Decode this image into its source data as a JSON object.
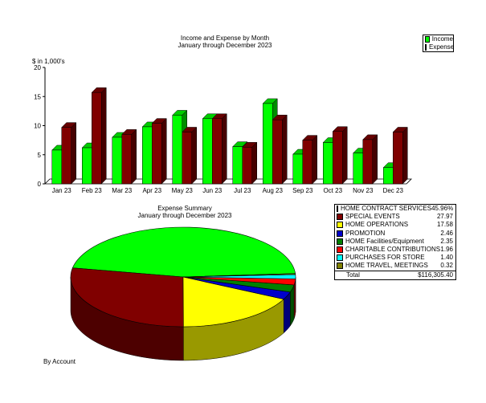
{
  "bar_chart": {
    "title": "Income and Expense by Month",
    "subtitle": "January through December 2023",
    "y_unit": "$ in 1,000's",
    "legend": [
      {
        "name": "Income",
        "color": "#00ff00"
      },
      {
        "name": "Expense",
        "color": "#800000"
      }
    ]
  },
  "pie_chart": {
    "title": "Expense Summary",
    "subtitle": "January through December 2023",
    "total_label": "Total",
    "total_value": "$116,305.40",
    "footer": "By Account"
  },
  "chart_data": [
    {
      "type": "bar",
      "title": "Income and Expense by Month",
      "subtitle": "January through December 2023",
      "ylabel": "$ in 1,000's",
      "xlabel": "",
      "ylim": [
        0,
        20
      ],
      "yticks": [
        0,
        5,
        10,
        15,
        20
      ],
      "grid": false,
      "legend_position": "top-right",
      "categories": [
        "Jan 23",
        "Feb 23",
        "Mar 23",
        "Apr 23",
        "May 23",
        "Jun 23",
        "Jul 23",
        "Aug 23",
        "Sep 23",
        "Oct 23",
        "Nov 23",
        "Dec 23"
      ],
      "series": [
        {
          "name": "Income",
          "color": "#00ff00",
          "values": [
            5.8,
            6.2,
            8.0,
            9.8,
            11.8,
            11.2,
            6.4,
            13.8,
            5.1,
            7.1,
            5.3,
            2.8
          ]
        },
        {
          "name": "Expense",
          "color": "#800000",
          "values": [
            9.7,
            15.7,
            8.5,
            10.4,
            8.9,
            11.2,
            6.3,
            11.0,
            7.5,
            9.0,
            7.6,
            8.9
          ]
        }
      ]
    },
    {
      "type": "pie",
      "title": "Expense Summary",
      "subtitle": "January through December 2023",
      "legend_position": "right",
      "slices": [
        {
          "label": "HOME CONTRACT SERVICES",
          "value": 45.96,
          "display": "45.96%",
          "color": "#00ff00"
        },
        {
          "label": "SPECIAL EVENTS",
          "value": 27.97,
          "display": "27.97",
          "color": "#800000"
        },
        {
          "label": "HOME OPERATIONS",
          "value": 17.58,
          "display": "17.58",
          "color": "#ffff00"
        },
        {
          "label": "PROMOTION",
          "value": 2.46,
          "display": "2.46",
          "color": "#0000cc"
        },
        {
          "label": "HOME Facilities/Equipment",
          "value": 2.35,
          "display": "2.35",
          "color": "#008000"
        },
        {
          "label": "CHARITABLE CONTRIBUTIONS",
          "value": 1.96,
          "display": "1.96",
          "color": "#ff0000"
        },
        {
          "label": "PURCHASES FOR STORE",
          "value": 1.4,
          "display": "1.40",
          "color": "#00ffff"
        },
        {
          "label": "HOME TRAVEL, MEETINGS",
          "value": 0.32,
          "display": "0.32",
          "color": "#808000"
        }
      ]
    }
  ]
}
